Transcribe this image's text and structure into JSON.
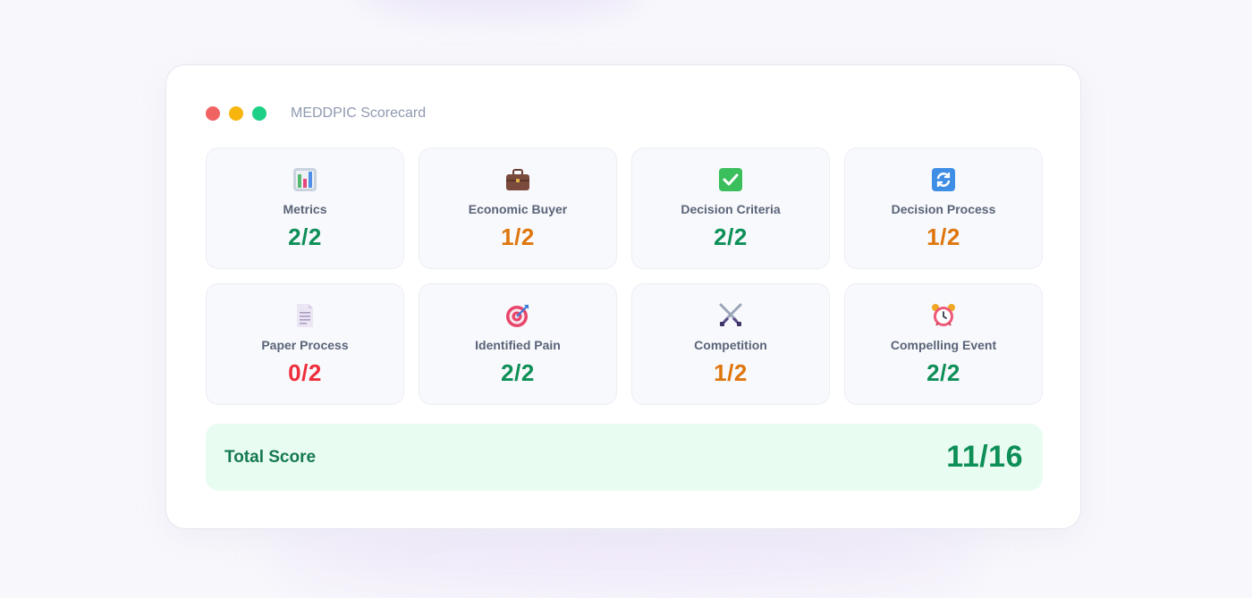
{
  "window": {
    "title": "MEDDPIC Scorecard"
  },
  "cards": [
    {
      "icon": "bar-chart-icon",
      "label": "Metrics",
      "score": "2/2",
      "status": "good"
    },
    {
      "icon": "briefcase-icon",
      "label": "Economic Buyer",
      "score": "1/2",
      "status": "mid"
    },
    {
      "icon": "checkmark-icon",
      "label": "Decision Criteria",
      "score": "2/2",
      "status": "good"
    },
    {
      "icon": "refresh-icon",
      "label": "Decision Process",
      "score": "1/2",
      "status": "mid"
    },
    {
      "icon": "document-icon",
      "label": "Paper Process",
      "score": "0/2",
      "status": "bad"
    },
    {
      "icon": "target-icon",
      "label": "Identified Pain",
      "score": "2/2",
      "status": "good"
    },
    {
      "icon": "crossed-swords-icon",
      "label": "Competition",
      "score": "1/2",
      "status": "mid"
    },
    {
      "icon": "alarm-clock-icon",
      "label": "Compelling Event",
      "score": "2/2",
      "status": "good"
    }
  ],
  "total": {
    "label": "Total Score",
    "value": "11/16"
  },
  "colors": {
    "good": "#0e8f58",
    "mid": "#df760d",
    "bad": "#ee2e3b",
    "total_bg": "#e9fcf2"
  }
}
